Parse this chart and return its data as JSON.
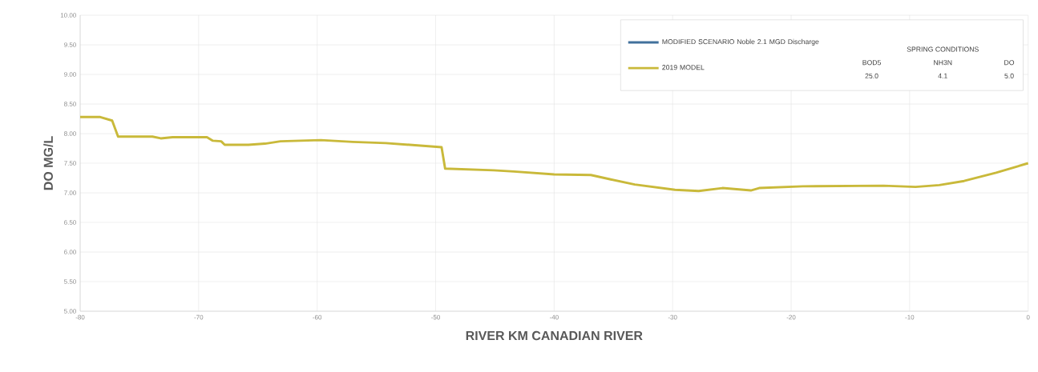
{
  "chart_data": {
    "type": "line",
    "xlabel": "RIVER KM CANADIAN RIVER",
    "ylabel": "DO MG/L",
    "x": [
      -80,
      -78.3,
      -77.3,
      -76.8,
      -73.9,
      -73.2,
      -72.2,
      -69.3,
      -68.8,
      -68.1,
      -67.8,
      -65.8,
      -64.4,
      -63.1,
      -59.7,
      -57,
      -54.2,
      -49.5,
      -49.2,
      -45.1,
      -43.4,
      -40,
      -36.9,
      -35.3,
      -33.2,
      -29.8,
      -27.8,
      -25.8,
      -23.4,
      -22.7,
      -19,
      -12.2,
      -9.5,
      -7.5,
      -5.4,
      -2.7,
      0
    ],
    "series": [
      {
        "name": "MODIFIED SCENARIO Noble 2.1 MGD Discharge",
        "color": "#41719c",
        "values": [
          null,
          null,
          null,
          null,
          null,
          null,
          null,
          null,
          null,
          null,
          null,
          null,
          null,
          null,
          null,
          null,
          null,
          null,
          null,
          null,
          null,
          null,
          null,
          null,
          null,
          null,
          null,
          null,
          null,
          null,
          null,
          null,
          null,
          null,
          null,
          null,
          null
        ]
      },
      {
        "name": "2019 MODEL",
        "color": "#c9b93a",
        "values": [
          8.28,
          8.28,
          8.22,
          7.95,
          7.95,
          7.92,
          7.94,
          7.94,
          7.88,
          7.87,
          7.81,
          7.81,
          7.83,
          7.87,
          7.89,
          7.86,
          7.84,
          7.77,
          7.41,
          7.38,
          7.36,
          7.31,
          7.3,
          7.23,
          7.14,
          7.05,
          7.03,
          7.08,
          7.04,
          7.08,
          7.11,
          7.12,
          7.1,
          7.13,
          7.2,
          7.34,
          7.5
        ]
      }
    ],
    "xlim": [
      -80,
      0
    ],
    "xticks": [
      -80,
      -70,
      -60,
      -50,
      -40,
      -30,
      -20,
      -10,
      0
    ],
    "ylim": [
      5,
      10
    ],
    "yticks": [
      {
        "value": 5,
        "label": "5.00"
      },
      {
        "value": 5.5,
        "label": "5.50"
      },
      {
        "value": 6,
        "label": "6.00"
      },
      {
        "value": 6.5,
        "label": "6.50"
      },
      {
        "value": 7,
        "label": "7.00"
      },
      {
        "value": 7.5,
        "label": "7.50"
      },
      {
        "value": 8,
        "label": "8.00"
      },
      {
        "value": 8.5,
        "label": "8.50"
      },
      {
        "value": 9,
        "label": "9.00"
      },
      {
        "value": 9.5,
        "label": "9.50"
      },
      {
        "value": 10,
        "label": "10.00"
      }
    ],
    "annotations": [
      "SPRING CONDITIONS",
      "BOD5",
      "NH3N",
      "DO",
      "25.0",
      "4.1",
      "5.0"
    ],
    "grid": true,
    "legend": "top right",
    "marker": "none",
    "line_style": "solid"
  }
}
